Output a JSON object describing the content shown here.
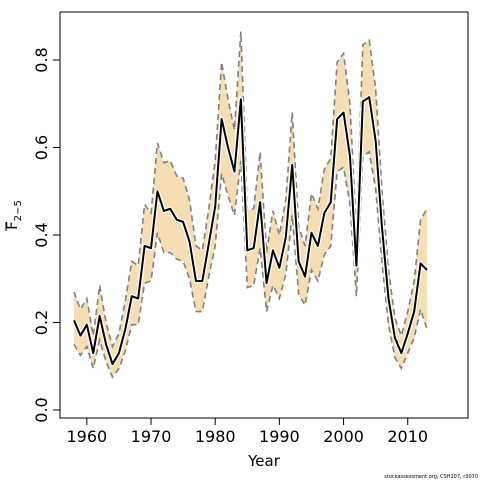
{
  "chart_data": {
    "type": "line",
    "xlabel": "Year",
    "ylabel_main": "F",
    "ylabel_subscript": "2−5",
    "footer": "stockassessment.org, CSH107, r3070",
    "xlim": [
      1958,
      2013
    ],
    "ylim": [
      0,
      0.87
    ],
    "x_ticks": [
      1960,
      1970,
      1980,
      1990,
      2000,
      2010
    ],
    "y_ticks": [
      {
        "value": 0.0,
        "label": "0.0"
      },
      {
        "value": 0.2,
        "label": "0.2"
      },
      {
        "value": 0.4,
        "label": "0.4"
      },
      {
        "value": 0.6,
        "label": "0.6"
      },
      {
        "value": 0.8,
        "label": "0.8"
      }
    ],
    "grid": false,
    "colors": {
      "band": "#f5deb3",
      "estimate": "#000000",
      "bounds": "#808080"
    },
    "series": [
      {
        "role": "estimate",
        "x": [
          1958,
          1959,
          1960,
          1961,
          1962,
          1963,
          1964,
          1965,
          1966,
          1967,
          1968,
          1969,
          1970,
          1971,
          1972,
          1973,
          1974,
          1975,
          1976,
          1977,
          1978,
          1979,
          1980,
          1981,
          1982,
          1983,
          1984,
          1985,
          1986,
          1987,
          1988,
          1989,
          1990,
          1991,
          1992,
          1993,
          1994,
          1995,
          1996,
          1997,
          1998,
          1999,
          2000,
          2001,
          2002,
          2003,
          2004,
          2005,
          2006,
          2007,
          2008,
          2009,
          2010,
          2011,
          2012,
          2013
        ],
        "values": [
          0.205,
          0.17,
          0.195,
          0.13,
          0.215,
          0.15,
          0.105,
          0.13,
          0.185,
          0.26,
          0.255,
          0.375,
          0.37,
          0.5,
          0.455,
          0.46,
          0.435,
          0.43,
          0.385,
          0.295,
          0.295,
          0.38,
          0.465,
          0.665,
          0.6,
          0.545,
          0.71,
          0.365,
          0.37,
          0.475,
          0.29,
          0.365,
          0.325,
          0.395,
          0.56,
          0.34,
          0.305,
          0.405,
          0.375,
          0.45,
          0.475,
          0.665,
          0.68,
          0.58,
          0.33,
          0.705,
          0.715,
          0.615,
          0.415,
          0.255,
          0.165,
          0.13,
          0.175,
          0.225,
          0.335,
          0.32
        ]
      },
      {
        "role": "upper",
        "x": [
          1958,
          1959,
          1960,
          1961,
          1962,
          1963,
          1964,
          1965,
          1966,
          1967,
          1968,
          1969,
          1970,
          1971,
          1972,
          1973,
          1974,
          1975,
          1976,
          1977,
          1978,
          1979,
          1980,
          1981,
          1982,
          1983,
          1984,
          1985,
          1986,
          1987,
          1988,
          1989,
          1990,
          1991,
          1992,
          1993,
          1994,
          1995,
          1996,
          1997,
          1998,
          1999,
          2000,
          2001,
          2002,
          2003,
          2004,
          2005,
          2006,
          2007,
          2008,
          2009,
          2010,
          2011,
          2012,
          2013
        ],
        "values": [
          0.27,
          0.23,
          0.255,
          0.17,
          0.285,
          0.2,
          0.145,
          0.175,
          0.25,
          0.34,
          0.33,
          0.47,
          0.45,
          0.61,
          0.565,
          0.57,
          0.535,
          0.53,
          0.48,
          0.375,
          0.365,
          0.46,
          0.57,
          0.795,
          0.71,
          0.64,
          0.865,
          0.455,
          0.46,
          0.59,
          0.36,
          0.455,
          0.4,
          0.48,
          0.68,
          0.42,
          0.375,
          0.495,
          0.46,
          0.55,
          0.575,
          0.795,
          0.815,
          0.7,
          0.405,
          0.835,
          0.845,
          0.735,
          0.5,
          0.32,
          0.21,
          0.17,
          0.225,
          0.295,
          0.435,
          0.46
        ]
      },
      {
        "role": "lower",
        "x": [
          1958,
          1959,
          1960,
          1961,
          1962,
          1963,
          1964,
          1965,
          1966,
          1967,
          1968,
          1969,
          1970,
          1971,
          1972,
          1973,
          1974,
          1975,
          1976,
          1977,
          1978,
          1979,
          1980,
          1981,
          1982,
          1983,
          1984,
          1985,
          1986,
          1987,
          1988,
          1989,
          1990,
          1991,
          1992,
          1993,
          1994,
          1995,
          1996,
          1997,
          1998,
          1999,
          2000,
          2001,
          2002,
          2003,
          2004,
          2005,
          2006,
          2007,
          2008,
          2009,
          2010,
          2011,
          2012,
          2013
        ],
        "values": [
          0.15,
          0.125,
          0.145,
          0.095,
          0.16,
          0.11,
          0.075,
          0.095,
          0.135,
          0.195,
          0.195,
          0.29,
          0.295,
          0.405,
          0.36,
          0.36,
          0.345,
          0.34,
          0.3,
          0.225,
          0.225,
          0.305,
          0.375,
          0.54,
          0.49,
          0.445,
          0.57,
          0.28,
          0.285,
          0.37,
          0.225,
          0.285,
          0.255,
          0.31,
          0.445,
          0.265,
          0.24,
          0.32,
          0.295,
          0.355,
          0.375,
          0.545,
          0.555,
          0.47,
          0.26,
          0.58,
          0.59,
          0.505,
          0.335,
          0.195,
          0.12,
          0.095,
          0.13,
          0.165,
          0.23,
          0.185
        ]
      }
    ]
  }
}
